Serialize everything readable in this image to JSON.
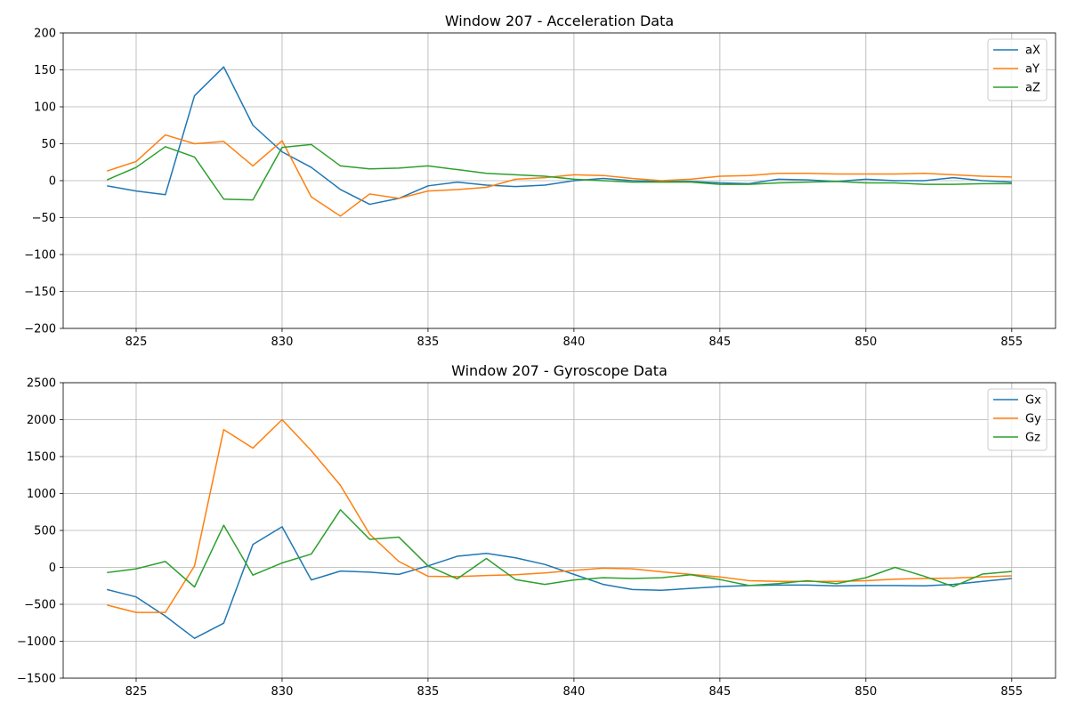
{
  "chart_data": [
    {
      "type": "line",
      "title": "Window 207 - Acceleration Data",
      "xlabel": "",
      "ylabel": "",
      "xlim": [
        822.5,
        856.5
      ],
      "ylim": [
        -200,
        200
      ],
      "xticks": [
        825,
        830,
        835,
        840,
        845,
        850,
        855
      ],
      "yticks": [
        -200,
        -150,
        -100,
        -50,
        0,
        50,
        100,
        150,
        200
      ],
      "grid": true,
      "legend": "top-right",
      "x": [
        824,
        825,
        826,
        827,
        828,
        829,
        830,
        831,
        832,
        833,
        834,
        835,
        836,
        837,
        838,
        839,
        840,
        841,
        842,
        843,
        844,
        845,
        846,
        847,
        848,
        849,
        850,
        851,
        852,
        853,
        854,
        855
      ],
      "series": [
        {
          "name": "aX",
          "color": "#1f77b4",
          "values": [
            -7,
            -14,
            -19,
            115,
            154,
            75,
            39,
            18,
            -12,
            -32,
            -24,
            -7,
            -2,
            -6,
            -8,
            -6,
            0,
            3,
            0,
            -1,
            -1,
            -3,
            -4,
            2,
            1,
            -1,
            2,
            0,
            0,
            4,
            0,
            -2
          ]
        },
        {
          "name": "aY",
          "color": "#ff7f0e",
          "values": [
            13,
            26,
            62,
            50,
            53,
            20,
            54,
            -22,
            -48,
            -18,
            -24,
            -14,
            -12,
            -9,
            2,
            4,
            8,
            7,
            3,
            0,
            2,
            6,
            7,
            10,
            10,
            9,
            9,
            9,
            10,
            8,
            6,
            5
          ]
        },
        {
          "name": "aZ",
          "color": "#2ca02c",
          "values": [
            1,
            18,
            46,
            32,
            -25,
            -26,
            45,
            49,
            20,
            16,
            17,
            20,
            15,
            10,
            8,
            6,
            2,
            0,
            -2,
            -2,
            -2,
            -5,
            -5,
            -3,
            -2,
            -1,
            -3,
            -3,
            -5,
            -5,
            -4,
            -4
          ]
        }
      ]
    },
    {
      "type": "line",
      "title": "Window 207 - Gyroscope Data",
      "xlabel": "",
      "ylabel": "",
      "xlim": [
        822.5,
        856.5
      ],
      "ylim": [
        -1500,
        2500
      ],
      "xticks": [
        825,
        830,
        835,
        840,
        845,
        850,
        855
      ],
      "yticks": [
        -1500,
        -1000,
        -500,
        0,
        500,
        1000,
        1500,
        2000,
        2500
      ],
      "grid": true,
      "legend": "top-right",
      "x": [
        824,
        825,
        826,
        827,
        828,
        829,
        830,
        831,
        832,
        833,
        834,
        835,
        836,
        837,
        838,
        839,
        840,
        841,
        842,
        843,
        844,
        845,
        846,
        847,
        848,
        849,
        850,
        851,
        852,
        853,
        854,
        855
      ],
      "series": [
        {
          "name": "Gx",
          "color": "#1f77b4",
          "values": [
            -300,
            -400,
            -660,
            -960,
            -755,
            310,
            550,
            -170,
            -50,
            -65,
            -95,
            20,
            150,
            190,
            130,
            40,
            -95,
            -230,
            -300,
            -310,
            -285,
            -260,
            -245,
            -240,
            -240,
            -250,
            -245,
            -245,
            -250,
            -230,
            -190,
            -150
          ]
        },
        {
          "name": "Gy",
          "color": "#ff7f0e",
          "values": [
            -510,
            -610,
            -610,
            20,
            1865,
            1615,
            2000,
            1580,
            1110,
            450,
            80,
            -120,
            -125,
            -110,
            -100,
            -75,
            -40,
            -10,
            -20,
            -60,
            -95,
            -130,
            -180,
            -190,
            -190,
            -190,
            -180,
            -160,
            -150,
            -145,
            -130,
            -115
          ]
        },
        {
          "name": "Gz",
          "color": "#2ca02c",
          "values": [
            -70,
            -20,
            80,
            -265,
            570,
            -105,
            60,
            180,
            780,
            380,
            410,
            20,
            -155,
            120,
            -165,
            -230,
            -170,
            -140,
            -150,
            -140,
            -100,
            -165,
            -245,
            -220,
            -180,
            -220,
            -140,
            0,
            -120,
            -260,
            -90,
            -55
          ]
        }
      ]
    }
  ]
}
